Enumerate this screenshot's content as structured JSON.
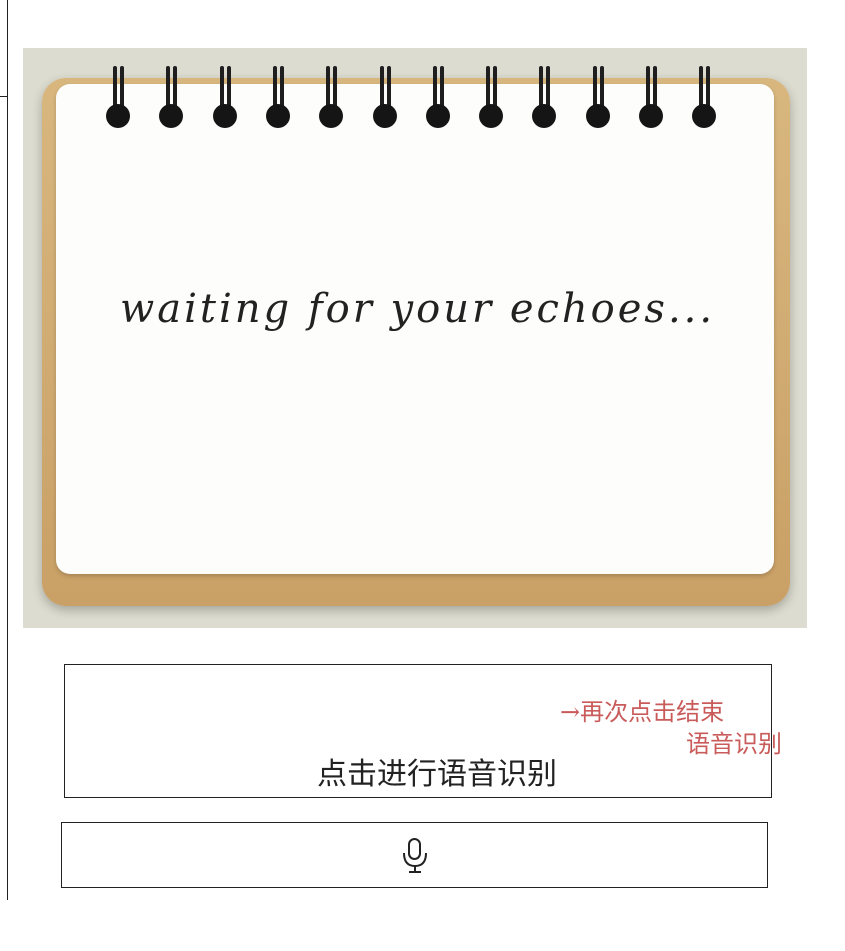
{
  "notebook": {
    "ring_count": 12,
    "text": "waiting for your echoes..."
  },
  "voice_button": {
    "label": "点击进行语音识别"
  },
  "annotation": {
    "line1": "→再次点击结束",
    "line2": "语音识别",
    "color": "#c95b5b"
  },
  "mic_button": {
    "icon": "microphone-icon"
  }
}
